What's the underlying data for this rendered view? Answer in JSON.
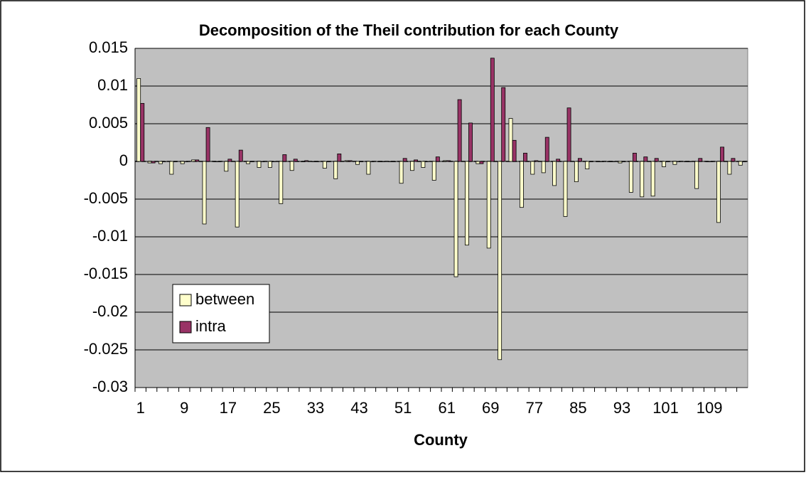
{
  "chart_data": {
    "type": "bar",
    "title": "Decomposition of the Theil contribution for each County",
    "x_label": "County",
    "categories": [
      1,
      null,
      null,
      null,
      9,
      null,
      null,
      null,
      17,
      null,
      null,
      null,
      25,
      null,
      null,
      null,
      33,
      null,
      null,
      null,
      43,
      null,
      null,
      null,
      51,
      null,
      null,
      null,
      61,
      null,
      null,
      null,
      69,
      null,
      null,
      null,
      77,
      null,
      null,
      null,
      85,
      null,
      null,
      null,
      93,
      null,
      null,
      null,
      101,
      null,
      null,
      null,
      109,
      null,
      null,
      null
    ],
    "series": [
      {
        "name": "between",
        "color": "#ffffcc",
        "values": [
          0.011,
          -0.0002,
          -0.0003,
          -0.0017,
          -0.0003,
          0.0002,
          -0.0083,
          0,
          -0.0013,
          -0.0087,
          -0.0003,
          -0.0008,
          -0.0008,
          -0.0056,
          -0.0012,
          0,
          0,
          -0.0009,
          -0.0023,
          0.0001,
          -0.0004,
          -0.0017,
          0,
          0,
          -0.0029,
          -0.0012,
          -0.0008,
          -0.0025,
          0.0001,
          -0.0153,
          -0.0111,
          -0.0003,
          -0.0115,
          -0.0263,
          0.0057,
          -0.0061,
          -0.0017,
          -0.0015,
          -0.0032,
          -0.0073,
          -0.0027,
          -0.001,
          0,
          0,
          -0.0002,
          -0.0041,
          -0.0047,
          -0.0046,
          -0.0007,
          -0.0004,
          0,
          -0.0036,
          0,
          -0.0081,
          -0.0017,
          -0.0005
        ]
      },
      {
        "name": "intra",
        "color": "#993366",
        "values": [
          0.0077,
          -0.0002,
          0,
          0,
          0,
          0.0002,
          0.0045,
          0,
          0.0003,
          0.0015,
          0,
          0,
          0,
          0.0009,
          0.0003,
          0.0001,
          0,
          0,
          0.001,
          0.0001,
          0,
          0,
          0,
          0,
          0.0004,
          0.0002,
          0,
          0.0006,
          0.0001,
          0.0082,
          0.0051,
          -0.0003,
          0.0137,
          0.0098,
          0.0028,
          0.0011,
          0.0001,
          0.0032,
          0.0003,
          0.0071,
          0.0004,
          0,
          0,
          0,
          0,
          0.0011,
          0.0006,
          0.0004,
          0,
          0,
          0,
          0.0004,
          0,
          0.0019,
          0.0004,
          0
        ]
      }
    ],
    "ylim": [
      -0.03,
      0.015
    ],
    "yticks": [
      -0.03,
      -0.025,
      -0.02,
      -0.015,
      -0.01,
      -0.005,
      0,
      0.005,
      0.01,
      0.015
    ],
    "grid": true,
    "legend": "left"
  }
}
